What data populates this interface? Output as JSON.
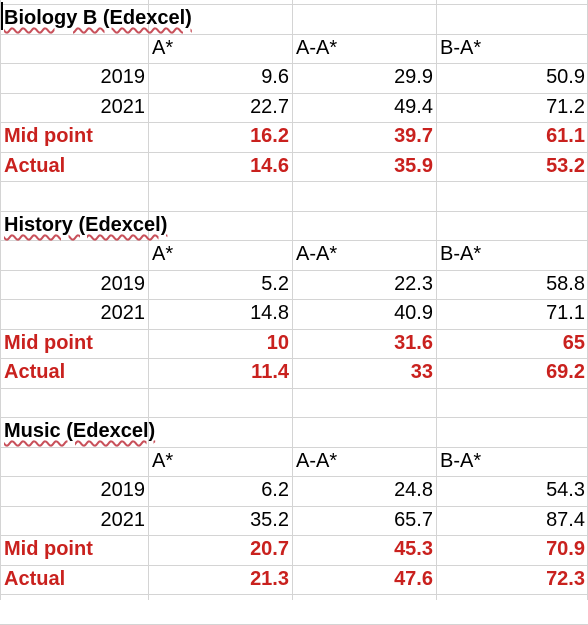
{
  "sections": [
    {
      "title": "Biology B (Edexcel)",
      "headers": [
        "A*",
        "A-A*",
        "B-A*"
      ],
      "rows": [
        {
          "label": "2019",
          "values": [
            "9.6",
            "29.9",
            "50.9"
          ],
          "highlight": false
        },
        {
          "label": "2021",
          "values": [
            "22.7",
            "49.4",
            "71.2"
          ],
          "highlight": false
        },
        {
          "label": "Mid point",
          "values": [
            "16.2",
            "39.7",
            "61.1"
          ],
          "highlight": true
        },
        {
          "label": "Actual",
          "values": [
            "14.6",
            "35.9",
            "53.2"
          ],
          "highlight": true
        }
      ]
    },
    {
      "title": "History (Edexcel)",
      "headers": [
        "A*",
        "A-A*",
        "B-A*"
      ],
      "rows": [
        {
          "label": "2019",
          "values": [
            "5.2",
            "22.3",
            "58.8"
          ],
          "highlight": false
        },
        {
          "label": "2021",
          "values": [
            "14.8",
            "40.9",
            "71.1"
          ],
          "highlight": false
        },
        {
          "label": "Mid point",
          "values": [
            "10",
            "31.6",
            "65"
          ],
          "highlight": true
        },
        {
          "label": "Actual",
          "values": [
            "11.4",
            "33",
            "69.2"
          ],
          "highlight": true
        }
      ]
    },
    {
      "title": "Music (Edexcel)",
      "headers": [
        "A*",
        "A-A*",
        "B-A*"
      ],
      "rows": [
        {
          "label": "2019",
          "values": [
            "6.2",
            "24.8",
            "54.3"
          ],
          "highlight": false
        },
        {
          "label": "2021",
          "values": [
            "35.2",
            "65.7",
            "87.4"
          ],
          "highlight": false
        },
        {
          "label": "Mid point",
          "values": [
            "20.7",
            "45.3",
            "70.9"
          ],
          "highlight": true
        },
        {
          "label": "Actual",
          "values": [
            "21.3",
            "47.6",
            "72.3"
          ],
          "highlight": true
        }
      ]
    }
  ],
  "colors": {
    "highlight": "#c9211e",
    "gridline": "#d4d4d4"
  }
}
